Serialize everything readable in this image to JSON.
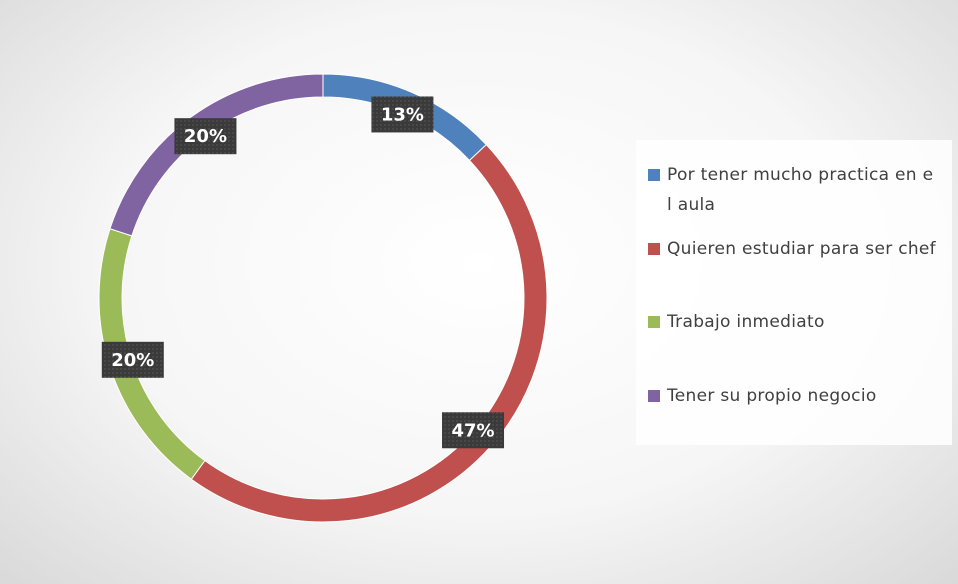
{
  "chart_data": {
    "type": "donut",
    "categories": [
      "Por tener mucho practica en e l aula",
      "Quieren estudiar para ser chef",
      "Trabajo inmediato",
      "Tener su propio negocio"
    ],
    "values": [
      13,
      47,
      20,
      20
    ],
    "value_labels": [
      "13%",
      "47%",
      "20%",
      "20%"
    ],
    "colors": [
      "#4f81bd",
      "#c0504d",
      "#9bbb59",
      "#8064a2"
    ],
    "legend": "right"
  }
}
